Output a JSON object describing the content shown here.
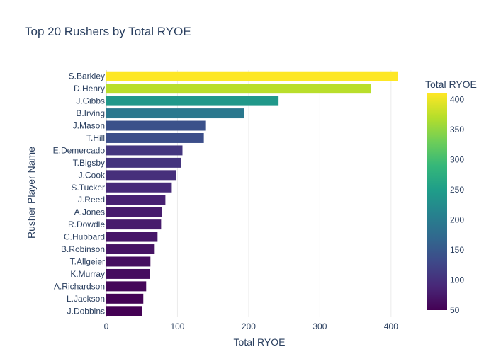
{
  "chart_data": {
    "type": "bar",
    "orientation": "horizontal",
    "title": "Top 20 Rushers by Total RYOE",
    "xlabel": "Total RYOE",
    "ylabel": "Rusher Player Name",
    "xlim": [
      0,
      430
    ],
    "xticks": [
      0,
      100,
      200,
      300,
      400
    ],
    "categories": [
      "S.Barkley",
      "D.Henry",
      "J.Gibbs",
      "B.Irving",
      "J.Mason",
      "T.Hill",
      "E.Demercado",
      "T.Bigsby",
      "J.Cook",
      "S.Tucker",
      "J.Reed",
      "A.Jones",
      "R.Dowdle",
      "C.Hubbard",
      "B.Robinson",
      "T.Allgeier",
      "K.Murray",
      "A.Richardson",
      "L.Jackson",
      "J.Dobbins"
    ],
    "values": [
      410,
      372,
      242,
      194,
      140,
      137,
      107,
      105,
      98,
      92,
      83,
      78,
      77,
      72,
      68,
      62,
      61,
      56,
      52,
      50
    ],
    "colorscale": "Viridis",
    "colorbar": {
      "title": "Total RYOE",
      "range": [
        50,
        410
      ],
      "ticks": [
        50,
        100,
        150,
        200,
        250,
        300,
        350,
        400
      ]
    },
    "grid": true
  }
}
